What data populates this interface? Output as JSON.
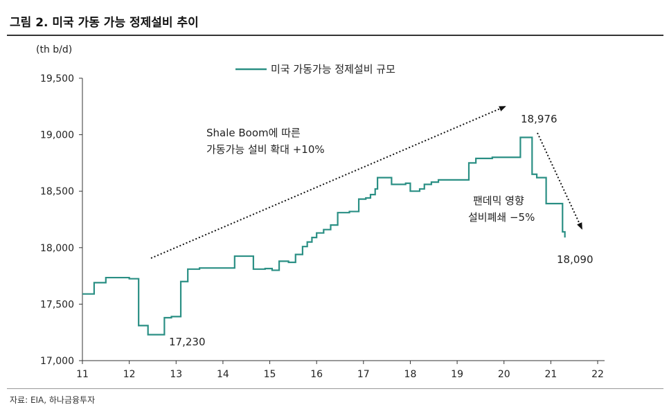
{
  "figure_title": "그림 2. 미국 가동 가능 정제설비 추이",
  "source_note": "자료: EIA, 하나금융투자",
  "colors": {
    "series": "#2a8f84",
    "arrow": "#111111",
    "axis": "#333333"
  },
  "chart_data": {
    "type": "line",
    "unit_label": "(th b/d)",
    "xlabel": "",
    "ylabel": "",
    "xlim": [
      11,
      22
    ],
    "ylim": [
      17000,
      19500
    ],
    "grid": false,
    "legend_position": "top-center",
    "x_ticks": [
      "11",
      "12",
      "13",
      "14",
      "15",
      "16",
      "17",
      "18",
      "19",
      "20",
      "21",
      "22"
    ],
    "y_ticks": [
      "17,000",
      "17,500",
      "18,000",
      "18,500",
      "19,000",
      "19,500"
    ],
    "y_tick_values": [
      17000,
      17500,
      18000,
      18500,
      19000,
      19500
    ],
    "series": [
      {
        "name": "미국 가동가능 정제설비 규모",
        "step": true,
        "points": [
          [
            11.0,
            17590
          ],
          [
            11.25,
            17690
          ],
          [
            11.5,
            17735
          ],
          [
            11.75,
            17735
          ],
          [
            12.0,
            17725
          ],
          [
            12.2,
            17310
          ],
          [
            12.4,
            17230
          ],
          [
            12.75,
            17380
          ],
          [
            12.9,
            17390
          ],
          [
            13.1,
            17700
          ],
          [
            13.25,
            17810
          ],
          [
            13.5,
            17820
          ],
          [
            13.75,
            17820
          ],
          [
            14.25,
            17925
          ],
          [
            14.65,
            17810
          ],
          [
            14.9,
            17815
          ],
          [
            15.05,
            17800
          ],
          [
            15.2,
            17880
          ],
          [
            15.4,
            17870
          ],
          [
            15.55,
            17940
          ],
          [
            15.7,
            18010
          ],
          [
            15.8,
            18050
          ],
          [
            15.9,
            18090
          ],
          [
            16.0,
            18130
          ],
          [
            16.15,
            18160
          ],
          [
            16.3,
            18200
          ],
          [
            16.45,
            18310
          ],
          [
            16.6,
            18310
          ],
          [
            16.7,
            18320
          ],
          [
            16.9,
            18430
          ],
          [
            17.05,
            18440
          ],
          [
            17.15,
            18470
          ],
          [
            17.25,
            18520
          ],
          [
            17.3,
            18620
          ],
          [
            17.45,
            18620
          ],
          [
            17.6,
            18560
          ],
          [
            17.9,
            18570
          ],
          [
            18.0,
            18500
          ],
          [
            18.2,
            18520
          ],
          [
            18.3,
            18560
          ],
          [
            18.45,
            18580
          ],
          [
            18.6,
            18600
          ],
          [
            19.0,
            18600
          ],
          [
            19.25,
            18750
          ],
          [
            19.4,
            18790
          ],
          [
            19.75,
            18800
          ],
          [
            20.25,
            18800
          ],
          [
            20.35,
            18976
          ],
          [
            20.55,
            18976
          ],
          [
            20.6,
            18650
          ],
          [
            20.7,
            18620
          ],
          [
            20.9,
            18390
          ],
          [
            21.2,
            18390
          ],
          [
            21.25,
            18140
          ],
          [
            21.3,
            18090
          ]
        ]
      }
    ],
    "annotations": {
      "shale_line1": "Shale Boom에 따른",
      "shale_line2": "가동가능 설비 확대 +10%",
      "pandemic_line1": "팬데믹 영향",
      "pandemic_line2": "설비폐쇄  −5%",
      "label_min": "17,230",
      "label_peak": "18,976",
      "label_last": "18,090"
    }
  }
}
